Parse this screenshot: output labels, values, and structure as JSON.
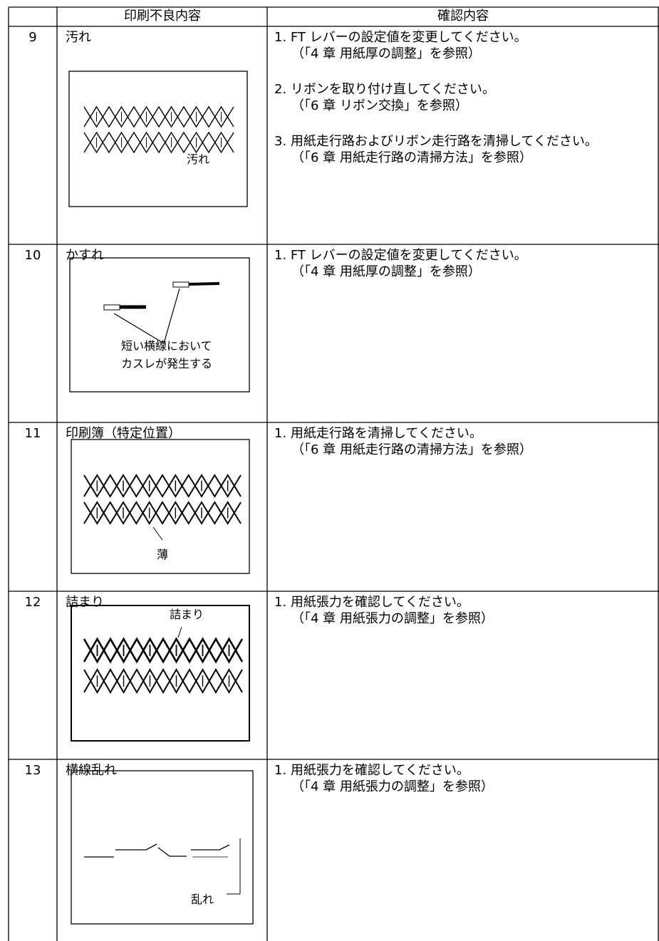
{
  "table": {
    "header": [
      "印刷不良内容",
      "確認内容"
    ],
    "rows": [
      {
        "no": "9",
        "title": "汚れ",
        "figure_labels": [
          "汚れ"
        ],
        "checks": [
          {
            "text": "1. FT レバーの設定値を変更してください。",
            "ref": "（「4 章 用紙厚の調整」を参照）"
          },
          {
            "text": "2. リボンを取り付け直してください。",
            "ref": "（「6 章 リボン交換」を参照）"
          },
          {
            "text": "3. 用紙走行路およびリボン走行路を清掃してください。",
            "ref": "（「6 章 用紙走行路の清掃方法」を参照）"
          }
        ]
      },
      {
        "no": "10",
        "title": "かすれ",
        "figure_labels": [
          "短い横線において",
          "カスレが発生する"
        ],
        "checks": [
          {
            "text": "1. FT レバーの設定値を変更してください。",
            "ref": "（「4 章 用紙厚の調整」を参照）"
          }
        ]
      },
      {
        "no": "11",
        "title": "印刷簿（特定位置）",
        "figure_labels": [
          "薄"
        ],
        "checks": [
          {
            "text": "1. 用紙走行路を清掃してください。",
            "ref": "（「6 章 用紙走行路の清掃方法」を参照）"
          }
        ]
      },
      {
        "no": "12",
        "title": "詰まり",
        "figure_labels": [
          "詰まり"
        ],
        "checks": [
          {
            "text": "1. 用紙張力を確認してください。",
            "ref": "（「4 章 用紙張力の調整」を参照）"
          }
        ]
      },
      {
        "no": "13",
        "title": "横線乱れ",
        "figure_labels": [
          "乱れ"
        ],
        "checks": [
          {
            "text": "1. 用紙張力を確認してください。",
            "ref": "（「4 章 用紙張力の調整」を参照）"
          }
        ]
      }
    ]
  }
}
